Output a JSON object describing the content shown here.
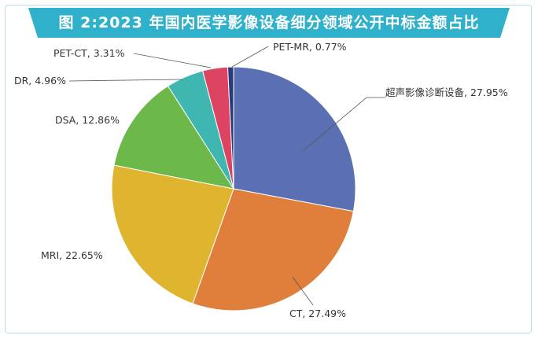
{
  "header": {
    "title": "图 2:2023 年国内医学影像设备细分领域公开中标金额占比"
  },
  "colors": {
    "title_bg": "#2fb1cb",
    "frame_border": "#b9dde6",
    "leader_line": "#555555"
  },
  "chart_data": {
    "type": "pie",
    "title": "图 2:2023 年国内医学影像设备细分领域公开中标金额占比",
    "start": "12 o'clock",
    "direction": "clockwise",
    "legend": "none",
    "slices": [
      {
        "name": "超声影像诊断设备",
        "value": 27.95,
        "label": "超声影像诊断设备, 27.95%",
        "color": "#5b6fb3"
      },
      {
        "name": "CT",
        "value": 27.49,
        "label": "CT, 27.49%",
        "color": "#e07f3b"
      },
      {
        "name": "MRI",
        "value": 22.65,
        "label": "MRI, 22.65%",
        "color": "#dfb530"
      },
      {
        "name": "DSA",
        "value": 12.86,
        "label": "DSA, 12.86%",
        "color": "#6cb84a"
      },
      {
        "name": "DR",
        "value": 4.96,
        "label": "DR, 4.96%",
        "color": "#3fb7b0"
      },
      {
        "name": "PET-CT",
        "value": 3.31,
        "label": "PET-CT, 3.31%",
        "color": "#dc4461"
      },
      {
        "name": "PET-MR",
        "value": 0.77,
        "label": "PET-MR, 0.77%",
        "color": "#2b3a7a"
      }
    ]
  }
}
